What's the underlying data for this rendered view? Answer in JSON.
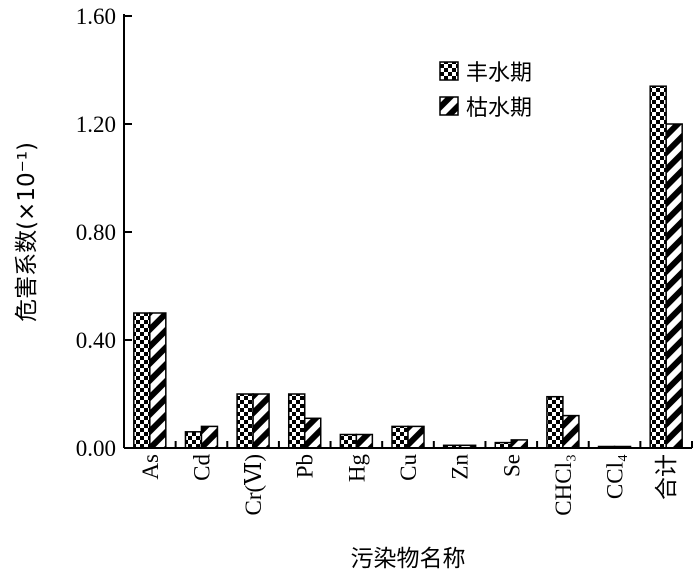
{
  "chart_data": {
    "type": "bar",
    "title": "",
    "xlabel": "污染物名称",
    "ylabel": "危害系数(×10⁻¹)",
    "ylim": [
      0,
      1.6
    ],
    "yticks": [
      "0.00",
      "0.40",
      "0.80",
      "1.20",
      "1.60"
    ],
    "categories": [
      "As",
      "Cd",
      "Cr(Ⅵ)",
      "Pb",
      "Hg",
      "Cu",
      "Zn",
      "Se",
      "CHCl₃",
      "CCl₄",
      "合计"
    ],
    "series": [
      {
        "name": "丰水期",
        "values": [
          0.5,
          0.06,
          0.2,
          0.2,
          0.05,
          0.08,
          0.01,
          0.02,
          0.19,
          0.005,
          1.34
        ]
      },
      {
        "name": "枯水期",
        "values": [
          0.5,
          0.08,
          0.2,
          0.11,
          0.05,
          0.08,
          0.01,
          0.03,
          0.12,
          0.005,
          1.2
        ]
      }
    ],
    "legend_position": "top-right",
    "grid": false
  }
}
